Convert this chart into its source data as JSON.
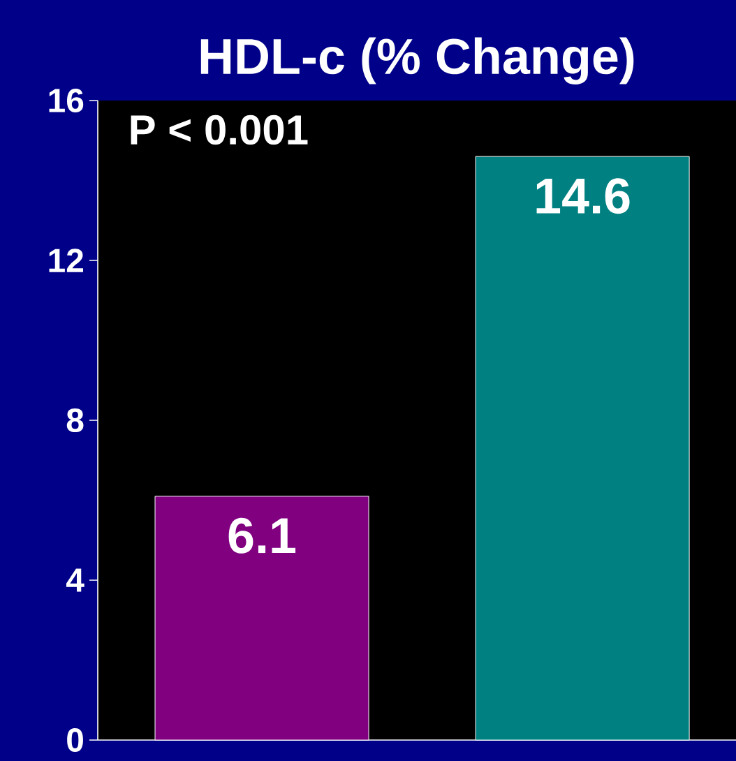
{
  "chart_data": {
    "type": "bar",
    "title": "HDL-c (% Change)",
    "categories": [
      null,
      null
    ],
    "values": [
      6.1,
      14.6
    ],
    "colors": [
      "#800080",
      "#008080"
    ],
    "ylim": [
      0,
      16
    ],
    "yticks": [
      0,
      4,
      8,
      12,
      16
    ],
    "data_labels": true,
    "annotations": [
      "P < 0.001"
    ]
  }
}
